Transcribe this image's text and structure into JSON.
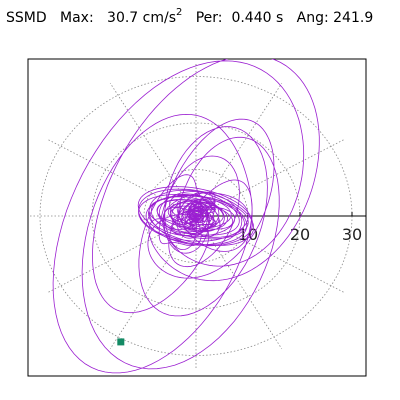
{
  "header": {
    "type": "SSMD",
    "max_label": "Max:",
    "max_value": "30.7 cm/s",
    "max_exp": "2",
    "per_label": "Per:",
    "per_value": "0.440 s",
    "ang_label": "Ang:",
    "ang_value": "241.9"
  },
  "chart_data": {
    "type": "scatter",
    "title": "",
    "polar": true,
    "radius_ticks": [
      10,
      20,
      30
    ],
    "radial_lines_every_deg": 30,
    "rmax": 33,
    "grid": true,
    "units": "cm/s^2",
    "peak_angle_deg": 241.9,
    "peak_value": 30.7,
    "orbit_color": "#9b1fd1",
    "marker_color": "#138a64",
    "series": [
      {
        "values": [
          {
            "amp": 24.0,
            "minor": 8.0,
            "tilt_deg": 58,
            "phase": 0.0
          },
          {
            "amp": 21.5,
            "minor": 10.0,
            "tilt_deg": 55,
            "phase": 0.6
          },
          {
            "amp": 19.0,
            "minor": 11.5,
            "tilt_deg": 52,
            "phase": 1.3
          },
          {
            "amp": 16.5,
            "minor": 12.0,
            "tilt_deg": 62,
            "phase": 2.1
          },
          {
            "amp": 14.0,
            "minor": 9.0,
            "tilt_deg": 70,
            "phase": 2.8
          },
          {
            "amp": 12.0,
            "minor": 6.0,
            "tilt_deg": 95,
            "phase": 3.4
          },
          {
            "amp": 10.5,
            "minor": 4.0,
            "tilt_deg": 35,
            "phase": 4.0
          },
          {
            "amp": 9.0,
            "minor": 5.0,
            "tilt_deg": 140,
            "phase": 4.7
          },
          {
            "amp": 7.0,
            "minor": 4.0,
            "tilt_deg": 20,
            "phase": 5.3
          },
          {
            "amp": 5.5,
            "minor": 3.5,
            "tilt_deg": 80,
            "phase": 5.9
          },
          {
            "amp": 4.5,
            "minor": 3.5,
            "tilt_deg": 120,
            "phase": 0.3
          },
          {
            "amp": 3.5,
            "minor": 2.5,
            "tilt_deg": 10,
            "phase": 1.0
          }
        ]
      }
    ]
  }
}
